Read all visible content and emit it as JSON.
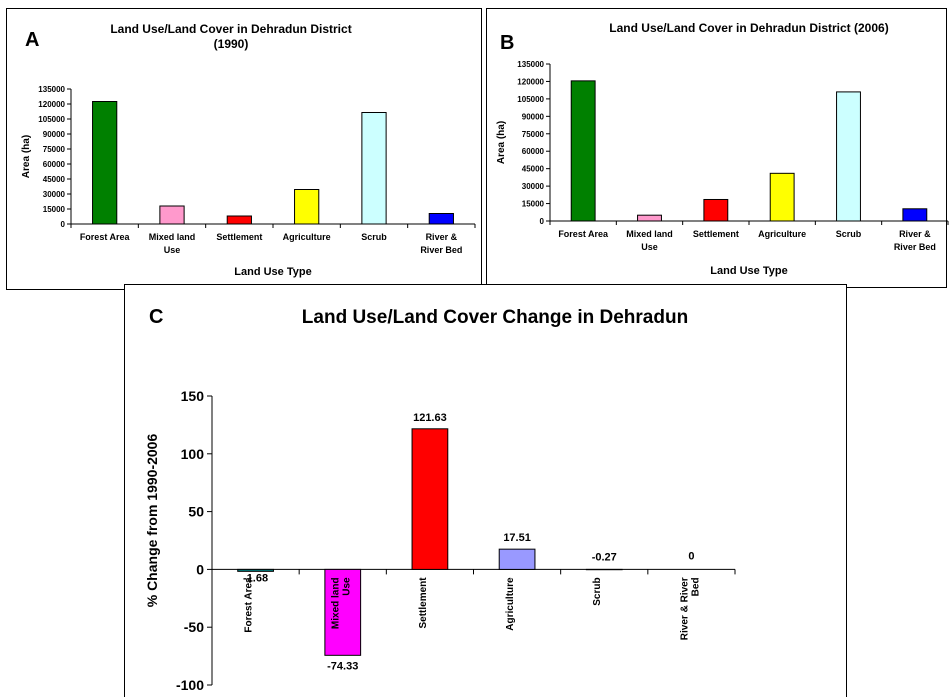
{
  "chart_data": [
    {
      "panel_label": "A",
      "type": "bar",
      "title": "Land Use/Land Cover in Dehradun District (1990)",
      "title_lines": [
        "Land Use/Land Cover in Dehradun District",
        "(1990)"
      ],
      "xlabel": "Land Use Type",
      "ylabel": "Area (ha)",
      "ylim": [
        0,
        135000
      ],
      "yticks": [
        0,
        15000,
        30000,
        45000,
        60000,
        75000,
        90000,
        105000,
        120000,
        135000
      ],
      "grid": false,
      "categories": [
        [
          "Forest Area"
        ],
        [
          "Mixed land",
          "Use"
        ],
        [
          "Settlement"
        ],
        [
          "Agriculture"
        ],
        [
          "Scrub"
        ],
        [
          "River &",
          "River Bed"
        ]
      ],
      "values": [
        122500,
        18000,
        8000,
        34500,
        111500,
        10500
      ],
      "colors": [
        "#008000",
        "#FF99CC",
        "#FF0000",
        "#FFFF00",
        "#CCFFFF",
        "#0000FF"
      ]
    },
    {
      "panel_label": "B",
      "type": "bar",
      "title": "Land Use/Land Cover in Dehradun District (2006)",
      "title_lines": [
        "Land Use/Land Cover in Dehradun District (2006)"
      ],
      "xlabel": "Land Use Type",
      "ylabel": "Area (ha)",
      "ylim": [
        0,
        135000
      ],
      "yticks": [
        0,
        15000,
        30000,
        45000,
        60000,
        75000,
        90000,
        105000,
        120000,
        135000
      ],
      "grid": false,
      "categories": [
        [
          "Forest Area"
        ],
        [
          "Mixed land",
          "Use"
        ],
        [
          "Settlement"
        ],
        [
          "Agriculture"
        ],
        [
          "Scrub"
        ],
        [
          "River &",
          "River Bed"
        ]
      ],
      "values": [
        120500,
        5000,
        18500,
        41000,
        111000,
        10500
      ],
      "colors": [
        "#008000",
        "#FF99CC",
        "#FF0000",
        "#FFFF00",
        "#CCFFFF",
        "#0000FF"
      ]
    },
    {
      "panel_label": "C",
      "type": "bar",
      "title": "Land Use/Land Cover Change in Dehradun",
      "xlabel": "",
      "ylabel": "% Change from 1990-2006",
      "ylim": [
        -100,
        150
      ],
      "yticks": [
        -100,
        -50,
        0,
        50,
        100,
        150
      ],
      "grid": false,
      "categories": [
        [
          "Forest Area"
        ],
        [
          "Mixed land",
          "Use"
        ],
        [
          "Settlement"
        ],
        [
          "Agriculture"
        ],
        [
          "Scrub"
        ],
        [
          "River & River",
          "Bed"
        ]
      ],
      "values": [
        -1.68,
        -74.33,
        121.63,
        17.51,
        -0.27,
        0
      ],
      "value_labels": [
        "-1.68",
        "-74.33",
        "121.63",
        "17.51",
        "-0.27",
        "0"
      ],
      "colors": [
        "#008080",
        "#FF00FF",
        "#FF0000",
        "#9999FF",
        "#000000",
        "#000000"
      ]
    }
  ]
}
